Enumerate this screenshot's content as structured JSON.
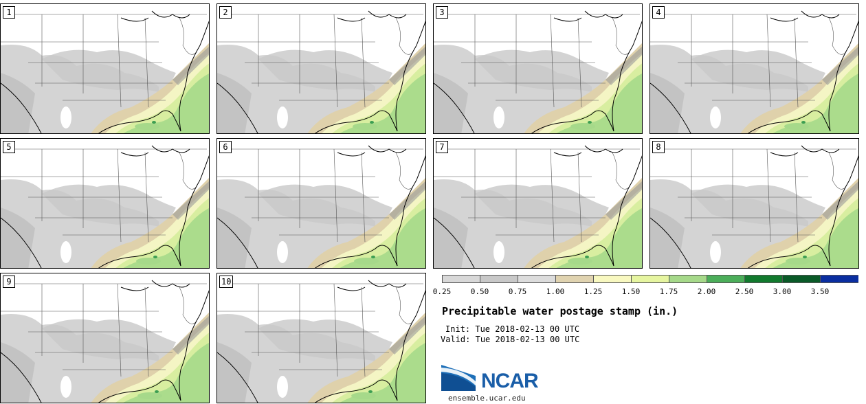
{
  "title": "Precipitable water postage stamp (in.)",
  "init_label": "Init:",
  "init_value": "Tue 2018-02-13 00 UTC",
  "valid_label": "Valid:",
  "valid_value": "Tue 2018-02-13 00 UTC",
  "panels": [
    "1",
    "2",
    "3",
    "4",
    "5",
    "6",
    "7",
    "8",
    "9",
    "10"
  ],
  "legend": {
    "ticks": [
      "0.25",
      "0.50",
      "0.75",
      "1.00",
      "1.25",
      "1.50",
      "1.75",
      "2.00",
      "2.50",
      "3.00",
      "3.50"
    ],
    "colors": [
      "#d8d8d8",
      "#c8c8c8",
      "#dcdcdc",
      "#e0d3b0",
      "#f8f8c0",
      "#e6f5a0",
      "#a6d98a",
      "#4cae5a",
      "#127a2e",
      "#0a5a28",
      "#0a2ea0"
    ]
  },
  "colors": {
    "land_dry": "#d4d4d4",
    "land_mid": "#c8c8c8",
    "tan": "#dfd1ab",
    "yellow": "#f4f5c4",
    "light_green": "#d8eea0",
    "green": "#a6d98a",
    "dark_green": "#3c9e52"
  },
  "logo": {
    "name": "NCAR",
    "url": "ensemble.ucar.edu"
  }
}
